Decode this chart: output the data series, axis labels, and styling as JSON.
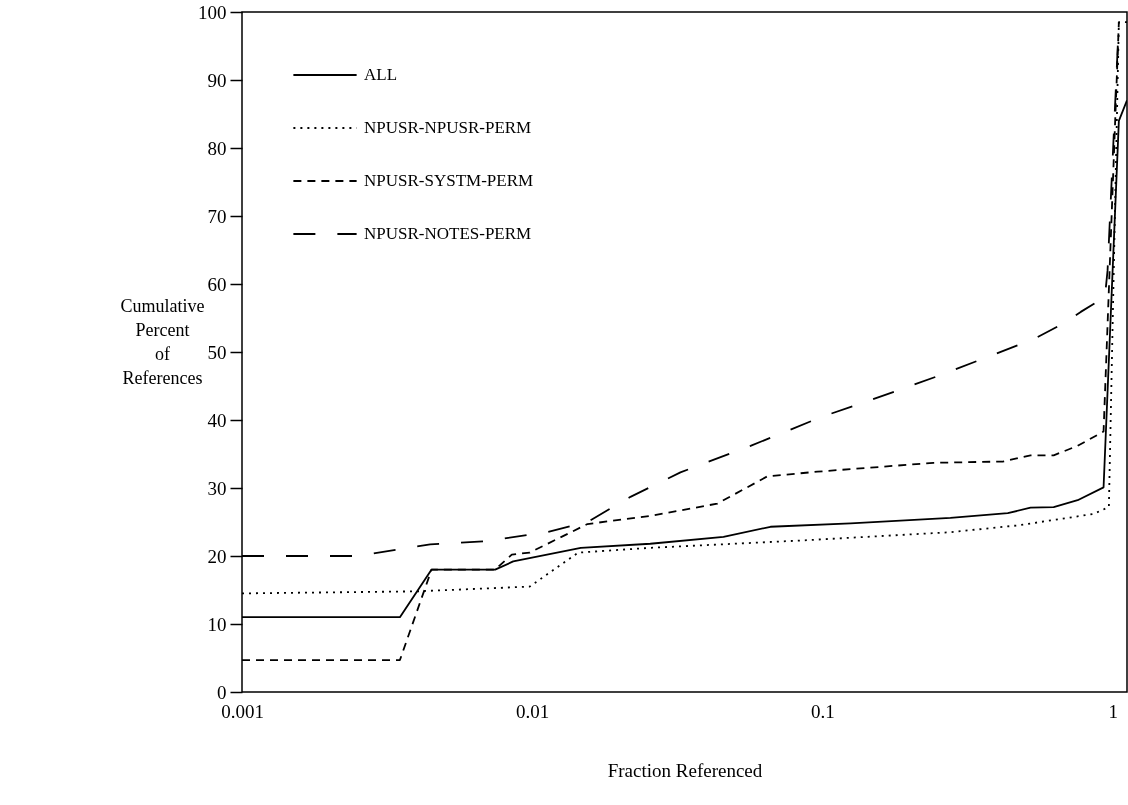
{
  "chart_data": {
    "type": "line",
    "xlabel": "Fraction Referenced",
    "ylabel": "Cumulative Percent of References",
    "log": "x",
    "xlim": [
      0.001,
      1.12
    ],
    "xticks": [
      0.001,
      0.01,
      0.1,
      1
    ],
    "ylim": [
      0,
      100
    ],
    "yticks": [
      0,
      10,
      20,
      30,
      40,
      50,
      60,
      70,
      80,
      90,
      100
    ],
    "grid": false,
    "legend": "top left",
    "series": [
      {
        "name": "ALL",
        "color": "#000000",
        "line_style": "solid",
        "x": [
          0.001,
          0.0035,
          0.0045,
          0.00745,
          0.0086,
          0.0147,
          0.0255,
          0.0456,
          0.0662,
          0.125,
          0.276,
          0.435,
          0.521,
          0.626,
          0.757,
          0.93,
          1.05,
          1.12
        ],
        "values": [
          11,
          11,
          18,
          18,
          19.2,
          21.2,
          21.8,
          22.8,
          24.3,
          24.8,
          25.6,
          26.3,
          27.1,
          27.2,
          28.2,
          30.1,
          84,
          87
        ]
      },
      {
        "name": "NPUSR-NPUSR-PERM",
        "color": "#000000",
        "line_style": "dotted",
        "x": [
          0.001,
          0.004,
          0.0098,
          0.0144,
          0.0255,
          0.086,
          0.276,
          0.47,
          0.7,
          0.86,
          0.97,
          1.05,
          1.12
        ],
        "values": [
          14.5,
          14.8,
          15.5,
          20.5,
          21.2,
          22.3,
          23.5,
          24.5,
          25.6,
          26.2,
          27.2,
          98.5,
          98.5
        ]
      },
      {
        "name": "NPUSR-SYSTM-PERM",
        "color": "#000000",
        "line_style": "dashed",
        "x": [
          0.001,
          0.0035,
          0.0045,
          0.00745,
          0.0085,
          0.0098,
          0.0155,
          0.0255,
          0.0434,
          0.0645,
          0.096,
          0.241,
          0.42,
          0.521,
          0.626,
          0.757,
          0.93,
          1.05
        ],
        "values": [
          4.7,
          4.7,
          18,
          18,
          20.2,
          20.5,
          24.7,
          25.9,
          27.7,
          31.7,
          32.4,
          33.7,
          33.9,
          34.8,
          34.8,
          36.2,
          38.3,
          98.5
        ]
      },
      {
        "name": "NPUSR-NOTES-PERM",
        "color": "#000000",
        "line_style": "longdash",
        "x": [
          0.001,
          0.00249,
          0.00445,
          0.00698,
          0.0112,
          0.0155,
          0.0218,
          0.0324,
          0.0565,
          0.1,
          0.16,
          0.255,
          0.535,
          0.67,
          0.776,
          0.94,
          0.96,
          1.05
        ],
        "values": [
          20,
          20,
          21.7,
          22.2,
          23.5,
          25,
          28.7,
          32.3,
          36.2,
          40.5,
          43.5,
          46.6,
          51.9,
          54.1,
          55.9,
          58.1,
          62,
          98.5
        ]
      }
    ]
  }
}
